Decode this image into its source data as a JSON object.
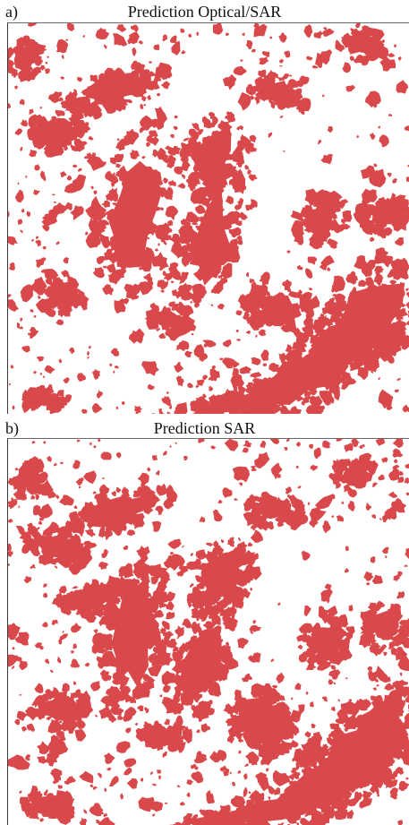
{
  "figure": {
    "colors": {
      "deforestation": "#d9484a",
      "background": "#ffffff",
      "frame": "#3a3a3a"
    },
    "panels": [
      {
        "letter": "a)",
        "title": "Prediction Optical/SAR"
      },
      {
        "letter": "b)",
        "title": "Prediction SAR"
      }
    ]
  }
}
